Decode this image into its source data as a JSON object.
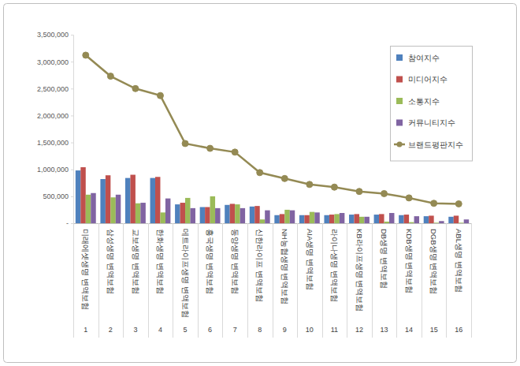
{
  "chart_data": {
    "type": "bar",
    "categories": [
      "미래에셋생명 변액보험",
      "삼성생명 변액보험",
      "교보생명 변액보험",
      "한화생명 변액보험",
      "메트라이프생명 변액보험",
      "흥국생명 변액보험",
      "동양생명 변액보험",
      "신한라이프 변액보험",
      "NH농협생명 변액보험",
      "AIA생명 변액보험",
      "라이나생명 변액보험",
      "KB라이프생명 변액보험",
      "DB생명 변액보험",
      "KDB생명 변액보험",
      "DGB생명 변액보험",
      "ABL생명 변액보험"
    ],
    "category_numbers": [
      1,
      2,
      3,
      4,
      5,
      6,
      7,
      8,
      9,
      10,
      11,
      12,
      13,
      14,
      15,
      16
    ],
    "series": [
      {
        "name": "참여지수",
        "type": "bar",
        "color": "#4f81bd",
        "values": [
          980000,
          820000,
          840000,
          840000,
          350000,
          300000,
          340000,
          310000,
          150000,
          150000,
          150000,
          160000,
          160000,
          150000,
          130000,
          120000
        ]
      },
      {
        "name": "미디어지수",
        "type": "bar",
        "color": "#c0504d",
        "values": [
          1040000,
          890000,
          900000,
          860000,
          380000,
          300000,
          360000,
          320000,
          170000,
          150000,
          160000,
          170000,
          170000,
          160000,
          140000,
          140000
        ]
      },
      {
        "name": "소통지수",
        "type": "bar",
        "color": "#9bbb59",
        "values": [
          530000,
          480000,
          370000,
          200000,
          470000,
          500000,
          350000,
          70000,
          250000,
          210000,
          170000,
          120000,
          30000,
          20000,
          10000,
          10000
        ]
      },
      {
        "name": "커뮤니티지수",
        "type": "bar",
        "color": "#8064a2",
        "values": [
          560000,
          530000,
          380000,
          460000,
          280000,
          280000,
          280000,
          240000,
          240000,
          200000,
          190000,
          120000,
          190000,
          130000,
          40000,
          70000
        ]
      },
      {
        "name": "브랜드평판지수",
        "type": "line",
        "color": "#948a54",
        "marker": "circle",
        "line_style": "solid",
        "values": [
          3120000,
          2730000,
          2500000,
          2370000,
          1480000,
          1390000,
          1320000,
          940000,
          830000,
          720000,
          670000,
          590000,
          550000,
          470000,
          370000,
          360000
        ]
      }
    ],
    "ylim": [
      0,
      3500000
    ],
    "yticks": [
      {
        "value": 0,
        "label": "-"
      },
      {
        "value": 500000,
        "label": "500,000"
      },
      {
        "value": 1000000,
        "label": "1,000,000"
      },
      {
        "value": 1500000,
        "label": "1,500,000"
      },
      {
        "value": 2000000,
        "label": "2,000,000"
      },
      {
        "value": 2500000,
        "label": "2,500,000"
      },
      {
        "value": 3000000,
        "label": "3,000,000"
      },
      {
        "value": 3500000,
        "label": "3,500,000"
      }
    ],
    "grid": false,
    "legend": "top-right"
  }
}
